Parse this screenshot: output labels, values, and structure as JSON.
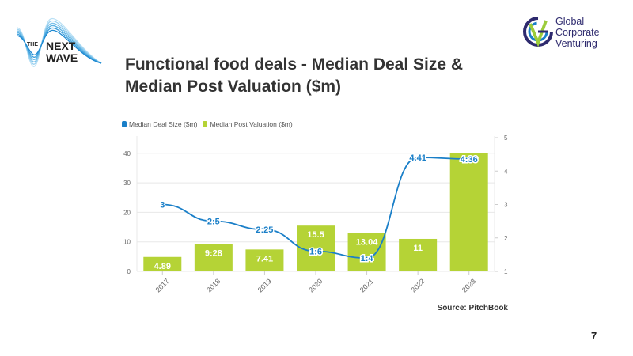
{
  "slide": {
    "title": "Functional food deals - Median Deal Size & Median Post Valuation ($m)",
    "source": "Source: PitchBook",
    "page_number": "7"
  },
  "logos": {
    "left": {
      "line1": "THE",
      "line2": "NEXT",
      "line3": "WAVE"
    },
    "right": {
      "line1": "Global",
      "line2": "Corporate",
      "line3": "Venturing"
    }
  },
  "colors": {
    "deal_size": "#1a7fc8",
    "post_valuation": "#b5d336",
    "grid": "#e8e8e8",
    "axis_text": "#666666"
  },
  "chart_data": {
    "type": "bar",
    "title": "Functional food deals - Median Deal Size & Median Post Valuation ($m)",
    "xlabel": "",
    "categories": [
      "2017",
      "2018",
      "2019",
      "2020",
      "2021",
      "2022",
      "2023"
    ],
    "legend_position": "top-left",
    "grid": true,
    "series": [
      {
        "name": "Median Deal Size ($m)",
        "type": "line",
        "axis": "right",
        "values": [
          3,
          2.5,
          2.25,
          1.6,
          1.4,
          4.41,
          4.36
        ],
        "labels": [
          "3",
          "2:5",
          "2:25",
          "1:6",
          "1:4",
          "4.41",
          "4:36"
        ]
      },
      {
        "name": "Median Post Valuation ($m)",
        "type": "bar",
        "axis": "left",
        "values": [
          4.89,
          9.28,
          7.41,
          15.5,
          13.04,
          11,
          40.2
        ],
        "labels": [
          "4.89",
          "9:28",
          "7.41",
          "15.5",
          "13.04",
          "11",
          ""
        ]
      }
    ],
    "left_axis": {
      "ylim": [
        0,
        45
      ],
      "ticks": [
        0,
        10,
        20,
        30,
        40
      ]
    },
    "right_axis": {
      "ylim": [
        1,
        5
      ],
      "ticks": [
        1,
        2,
        3,
        4,
        5
      ]
    }
  }
}
